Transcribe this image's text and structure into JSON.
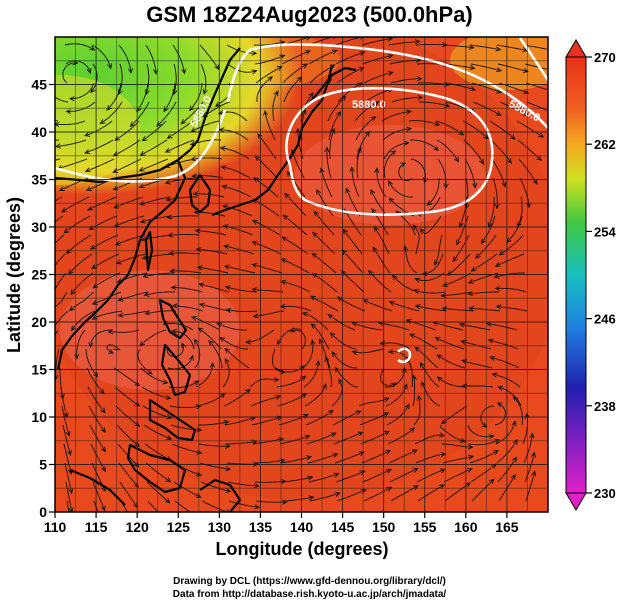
{
  "title": "GSM 18Z24Aug2023 (500.0hPa)",
  "xlabel": "Longitude (degrees)",
  "ylabel": "Latitude  (degrees)",
  "x_ticks": [
    "110",
    "115",
    "120",
    "125",
    "130",
    "135",
    "140",
    "145",
    "150",
    "155",
    "160",
    "165"
  ],
  "y_ticks": [
    "0",
    "5",
    "10",
    "15",
    "20",
    "25",
    "30",
    "35",
    "40",
    "45"
  ],
  "colorbar_ticks": [
    "270",
    "262",
    "254",
    "246",
    "238",
    "230"
  ],
  "contour_labels": [
    "5880.0",
    "5880.0",
    "5880.0"
  ],
  "credits": [
    "Drawing by DCL (https://www.gfd-dennou.org/library/dcl/)",
    "Data from http://database.rish.kyoto-u.ac.jp/arch/jmadata/"
  ],
  "map_extent": {
    "lon": [
      110,
      170
    ],
    "lat": [
      0,
      50
    ]
  },
  "colorbar_range": [
    230,
    270
  ],
  "colors": {
    "warm_field": "#e84a1e",
    "cool_field": "#6fd62c",
    "contour": "#ffffff",
    "colorbar_top": "#e83a1a",
    "colorbar_bottom": "#e020c8"
  }
}
